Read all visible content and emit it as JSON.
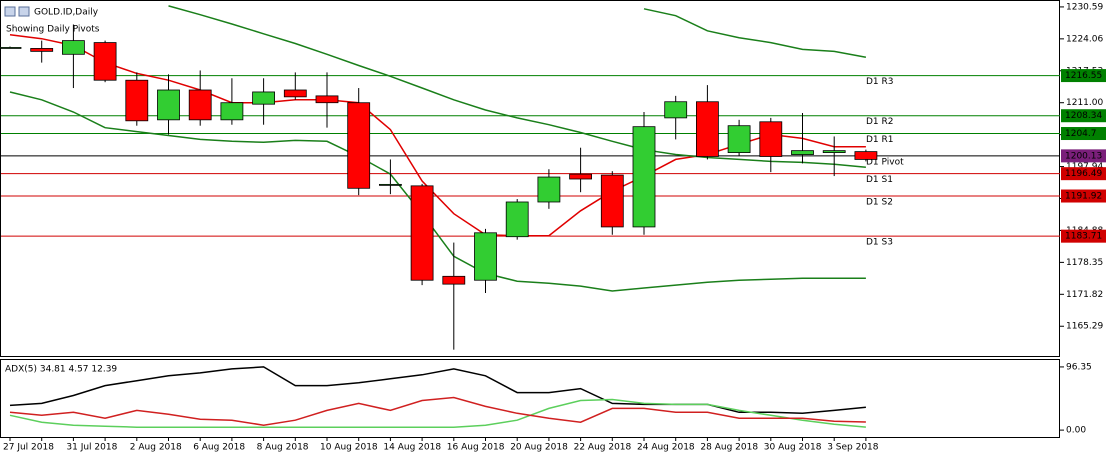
{
  "chart_data": [
    {
      "type": "candlestick",
      "title": "GOLD.ID,Daily",
      "subtitle": "Showing Daily Pivots",
      "categories": [
        "27 Jul 2018",
        null,
        "31 Jul 2018",
        null,
        "2 Aug 2018",
        null,
        "6 Aug 2018",
        null,
        "8 Aug 2018",
        null,
        "10 Aug 2018",
        null,
        "14 Aug 2018",
        null,
        "16 Aug 2018",
        null,
        "20 Aug 2018",
        null,
        "22 Aug 2018",
        null,
        "24 Aug 2018",
        null,
        "28 Aug 2018",
        null,
        "30 Aug 2018",
        null,
        "3 Sep 2018",
        null
      ],
      "open": [
        1222.3,
        1222.1,
        1220.9,
        1223.3,
        1215.6,
        1207.5,
        1213.6,
        1207.5,
        1210.7,
        1213.6,
        1212.4,
        1211.0,
        1194.3,
        1194.0,
        1175.5,
        1174.7,
        1183.6,
        1190.7,
        1196.4,
        1196.2,
        1185.6,
        1207.9,
        1211.2,
        1200.8,
        1207.1,
        1200.4,
        1200.8,
        1201.0
      ],
      "high": [
        1222.5,
        1223.7,
        1227.0,
        1223.7,
        1217.2,
        1216.8,
        1217.6,
        1216.0,
        1216.0,
        1217.2,
        1217.2,
        1214.0,
        1199.4,
        1194.4,
        1182.4,
        1185.2,
        1191.3,
        1197.4,
        1201.8,
        1197.0,
        1209.1,
        1212.4,
        1214.6,
        1207.5,
        1207.9,
        1208.9,
        1204.1,
        1201.4
      ],
      "low": [
        1222.1,
        1219.2,
        1214.0,
        1215.2,
        1206.3,
        1204.5,
        1206.3,
        1206.5,
        1206.5,
        1211.6,
        1205.9,
        1192.1,
        1192.3,
        1173.7,
        1160.5,
        1172.1,
        1183.0,
        1189.3,
        1192.7,
        1184.0,
        1184.0,
        1203.5,
        1199.4,
        1200.2,
        1196.8,
        1198.6,
        1196.0,
        1199.0
      ],
      "close": [
        1222.3,
        1221.5,
        1223.7,
        1215.6,
        1207.3,
        1213.6,
        1207.5,
        1211.0,
        1213.2,
        1212.2,
        1211.0,
        1193.5,
        1194.3,
        1174.7,
        1173.9,
        1184.4,
        1190.7,
        1195.8,
        1195.4,
        1185.6,
        1206.1,
        1211.2,
        1200.0,
        1206.3,
        1200.0,
        1201.2,
        1201.2,
        1199.4
      ],
      "up_color": "#32cd32",
      "down_color": "#ff0000",
      "overlays": [
        {
          "color": "#e00000",
          "values": [
            1224.9,
            1224.1,
            1222.7,
            1219.2,
            1217.0,
            1215.6,
            1213.6,
            1211.0,
            1211.0,
            1211.6,
            1211.6,
            1211.0,
            1205.5,
            1195.0,
            1188.3,
            1184.0,
            1183.8,
            1183.8,
            1188.9,
            1192.9,
            1196.0,
            1199.4,
            1200.4,
            1202.5,
            1204.5,
            1203.7,
            1202.0,
            1202.0
          ]
        },
        {
          "color": "#1a7f1a",
          "values": [
            null,
            null,
            null,
            null,
            null,
            1230.8,
            1229.0,
            1227.1,
            1225.1,
            1223.1,
            1220.9,
            1218.6,
            1216.4,
            1214.0,
            1211.6,
            1209.5,
            1207.9,
            1206.5,
            1204.9,
            1203.1,
            1201.4,
            1200.4,
            1199.8,
            1199.4,
            1199.0,
            1198.8,
            1198.4,
            1197.8
          ]
        },
        {
          "color": "#1a7f1a",
          "values": [
            null,
            null,
            null,
            null,
            null,
            null,
            null,
            null,
            null,
            null,
            null,
            null,
            null,
            null,
            null,
            null,
            null,
            null,
            null,
            null,
            1230.2,
            1228.8,
            1225.7,
            1224.3,
            1223.3,
            1221.9,
            1221.5,
            1220.3
          ]
        },
        {
          "color": "#1a7f1a",
          "values": [
            1213.2,
            1211.6,
            1209.1,
            1205.9,
            1205.1,
            1204.3,
            1203.5,
            1203.1,
            1202.9,
            1203.3,
            1203.1,
            1200.0,
            1196.4,
            1188.3,
            1179.6,
            1176.1,
            1174.5,
            1174.1,
            1173.5,
            1172.5,
            1173.1,
            1173.7,
            1174.3,
            1174.7,
            1174.9,
            1175.1,
            1175.1,
            1175.1
          ]
        }
      ],
      "pivots": [
        {
          "label": "D1 R3",
          "value": 1216.55,
          "color": "#008000",
          "box_color": "#008000"
        },
        {
          "label": "D1 R2",
          "value": 1208.34,
          "color": "#008000",
          "box_color": "#008000"
        },
        {
          "label": "D1 R1",
          "value": 1204.7,
          "color": "#008000",
          "box_color": "#008000"
        },
        {
          "label": "D1 Pivot",
          "value": 1200.13,
          "color": "#000000",
          "box_color": "#7a1f7a"
        },
        {
          "label": "D1 S1",
          "value": 1196.49,
          "color": "#d00000",
          "box_color": "#d00000"
        },
        {
          "label": "D1 S2",
          "value": 1191.92,
          "color": "#d00000",
          "box_color": "#d00000"
        },
        {
          "label": "D1 S3",
          "value": 1183.71,
          "color": "#d00000",
          "box_color": "#d00000"
        }
      ],
      "ylim": [
        1159.0,
        1231.8
      ],
      "yticks": [
        1230.59,
        1224.06,
        1217.53,
        {
          "value": 1211.0,
          "label": "1211.00"
        },
        1204.47,
        1197.94,
        1191.41,
        1184.88,
        1178.35,
        1171.82,
        1165.29
      ]
    },
    {
      "type": "line",
      "title": "ADX(5) 34.81 4.57 12.39",
      "series": [
        {
          "color": "#000000",
          "values": [
            37.7,
            40.7,
            52.7,
            67.8,
            75.3,
            82.8,
            87.3,
            93.4,
            96.4,
            67.8,
            67.8,
            72.3,
            78.3,
            84.3,
            93.4,
            82.8,
            57.2,
            57.2,
            63.3,
            40.7,
            39.2,
            39.2,
            39.2,
            27.1,
            27.1,
            25.6,
            30.1,
            34.8
          ]
        },
        {
          "color": "#5ccf5c",
          "values": [
            22.6,
            12.0,
            7.5,
            6.0,
            4.5,
            4.5,
            4.5,
            4.5,
            4.5,
            4.5,
            4.5,
            4.5,
            4.5,
            4.5,
            4.5,
            7.5,
            15.1,
            33.1,
            45.2,
            46.7,
            40.7,
            39.2,
            39.2,
            30.1,
            22.6,
            15.1,
            9.0,
            4.6
          ]
        },
        {
          "color": "#d02020",
          "values": [
            27.1,
            22.6,
            27.1,
            18.1,
            30.1,
            24.1,
            16.6,
            15.1,
            7.5,
            15.1,
            30.1,
            40.7,
            30.1,
            45.2,
            49.7,
            36.1,
            25.6,
            18.1,
            12.0,
            33.1,
            33.1,
            27.1,
            27.1,
            18.1,
            18.1,
            18.1,
            13.6,
            12.4
          ]
        }
      ],
      "ylim": [
        -10.5,
        106.9
      ],
      "yticks": [
        96.35,
        {
          "value": 0,
          "label": "0.00"
        }
      ]
    }
  ]
}
